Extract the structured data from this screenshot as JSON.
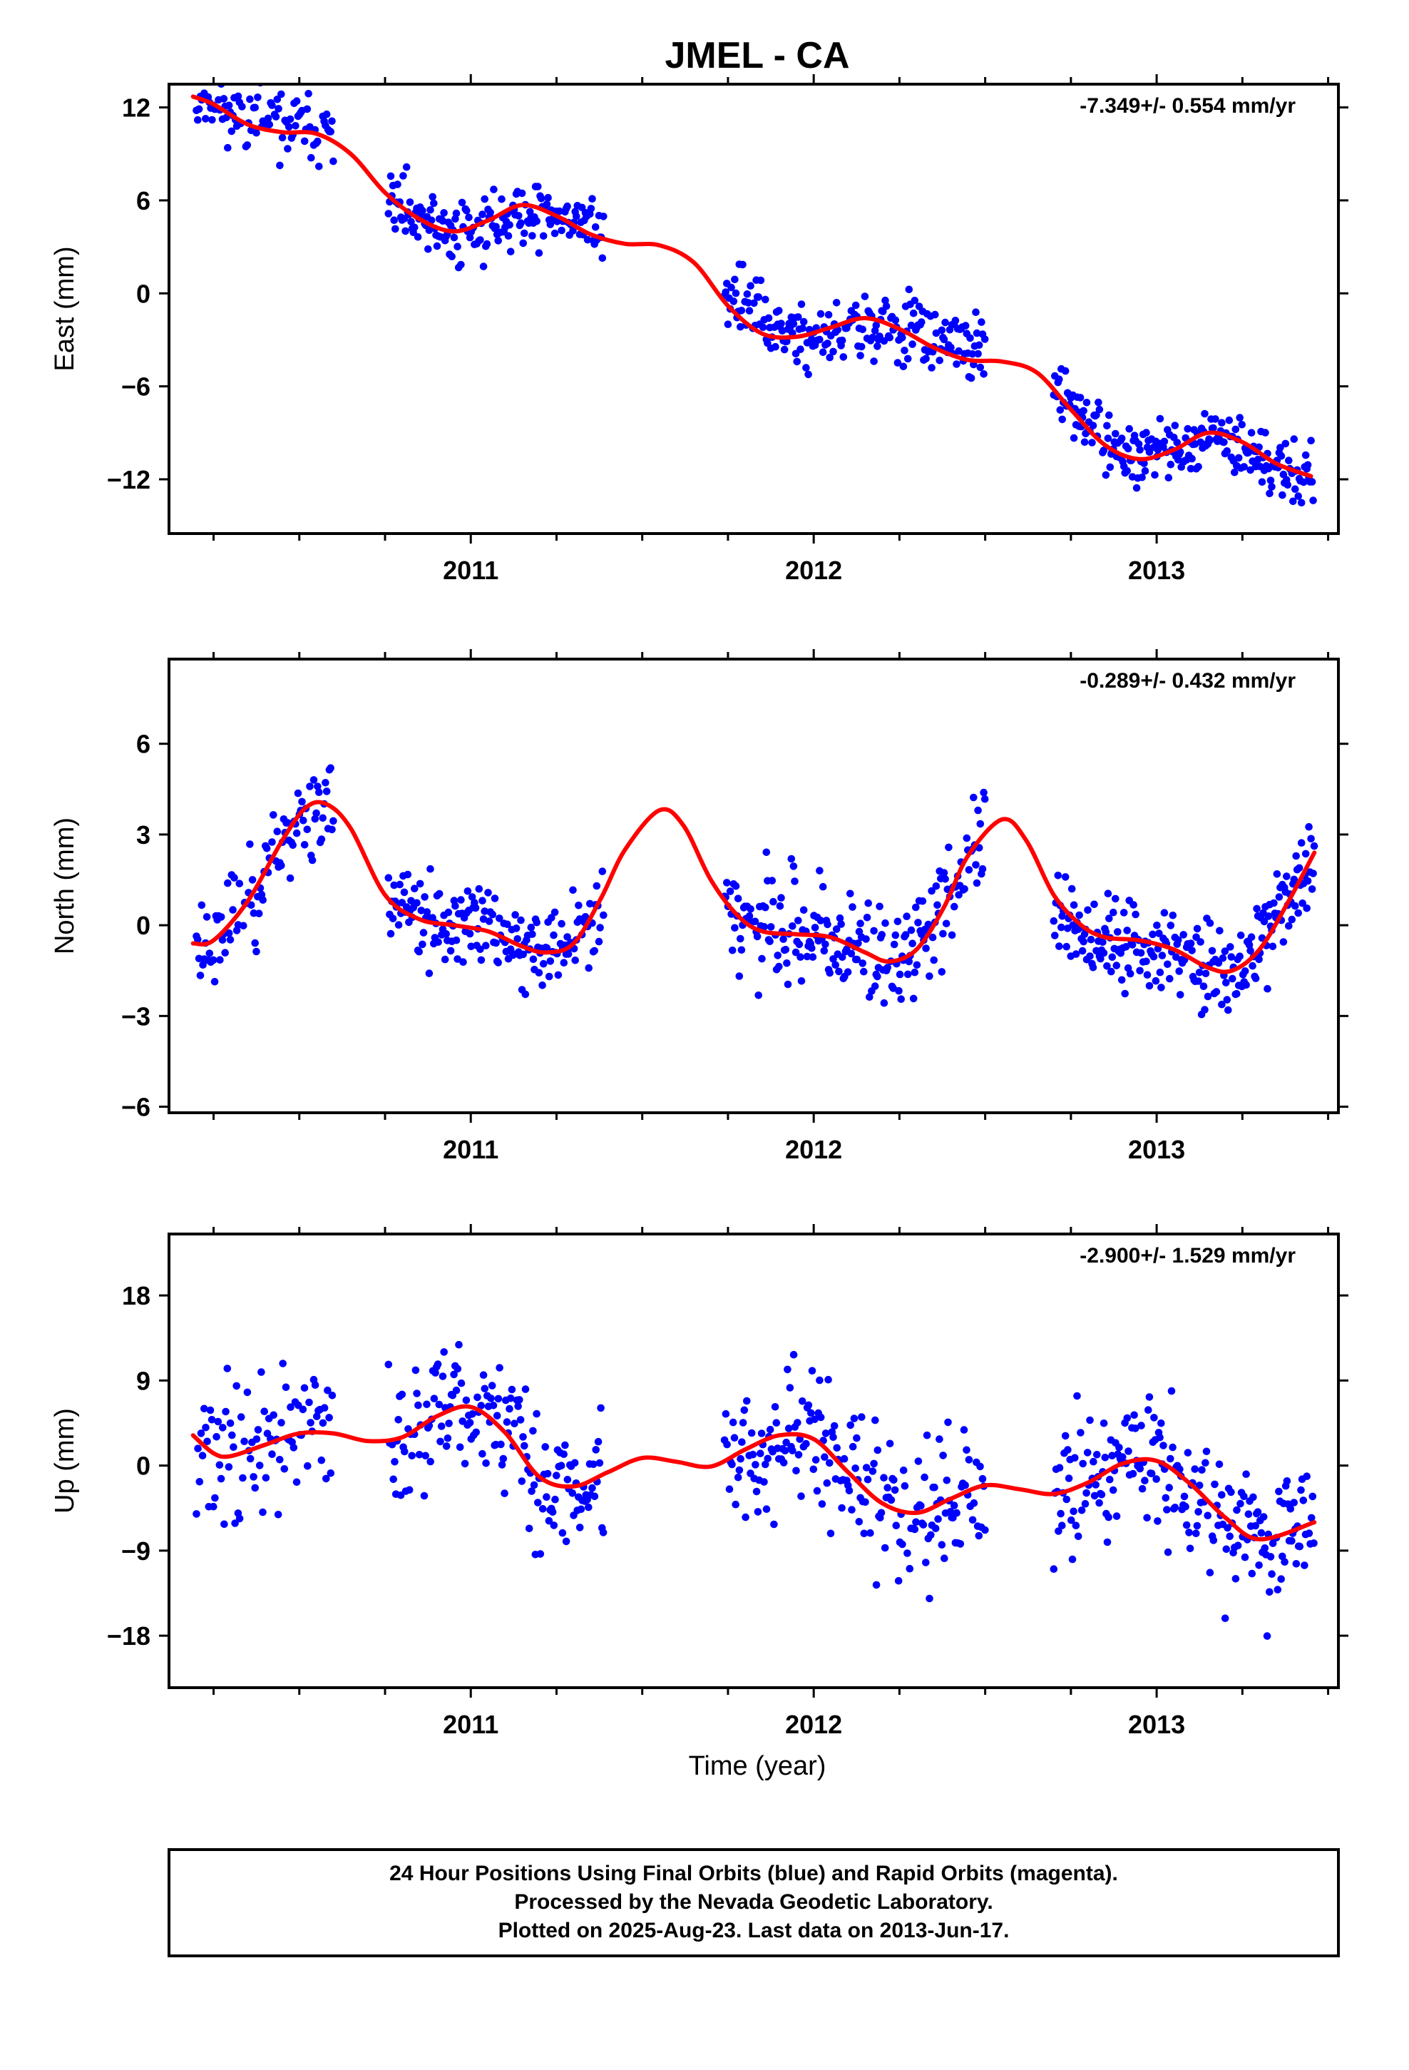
{
  "title": "JMEL - CA",
  "xlabel": "Time (year)",
  "footer": {
    "line1": "24 Hour Positions Using Final Orbits (blue) and Rapid Orbits (magenta).",
    "line2": "Processed by the Nevada Geodetic Laboratory.",
    "line3": "Plotted on 2025-Aug-23. Last data on 2013-Jun-17."
  },
  "colors": {
    "data": "#0000ff",
    "fit": "#ff0000",
    "frame": "#000000"
  },
  "chart_data": [
    {
      "type": "scatter",
      "ylabel": "East (mm)",
      "rate": "-7.349+/- 0.554 mm/yr",
      "xlim": [
        2010.12,
        2013.53
      ],
      "ylim": [
        -15.5,
        13.5
      ],
      "yticks": [
        12,
        6,
        0,
        -6,
        -12
      ],
      "xticks": [
        2011,
        2012,
        2013
      ],
      "fit_x": [
        2010.19,
        2010.25,
        2010.35,
        2010.45,
        2010.55,
        2010.65,
        2010.75,
        2010.85,
        2010.95,
        2011.05,
        2011.15,
        2011.25,
        2011.35,
        2011.45,
        2011.55,
        2011.65,
        2011.75,
        2011.85,
        2011.95,
        2012.05,
        2012.15,
        2012.25,
        2012.35,
        2012.45,
        2012.55,
        2012.65,
        2012.75,
        2012.85,
        2012.95,
        2013.05,
        2013.15,
        2013.25,
        2013.35,
        2013.45
      ],
      "fit_y": [
        12.7,
        12.2,
        10.9,
        10.4,
        10.3,
        9.0,
        6.5,
        4.8,
        4.0,
        4.7,
        5.7,
        5.0,
        3.8,
        3.2,
        3.1,
        2.0,
        -0.8,
        -2.6,
        -2.8,
        -2.2,
        -1.6,
        -2.3,
        -3.5,
        -4.3,
        -4.4,
        -5.1,
        -7.5,
        -9.8,
        -10.7,
        -10.1,
        -9.0,
        -9.6,
        -11.0,
        -11.8
      ],
      "segments": [
        {
          "x0": 2010.2,
          "x1": 2010.6,
          "wave": [
            [
              0.4,
              1.25,
              0.0
            ],
            [
              0.2,
              0.42,
              2.0
            ]
          ],
          "noise": 1.6,
          "step": 0.0038
        },
        {
          "x0": 2010.76,
          "x1": 2011.39,
          "wave": [
            [
              0.4,
              1.25,
              0.0
            ],
            [
              0.2,
              0.42,
              2.0
            ]
          ],
          "noise": 1.45,
          "step": 0.0033
        },
        {
          "x0": 2011.74,
          "x1": 2012.5,
          "wave": [
            [
              0.9,
              0.6,
              1.5
            ],
            [
              0.0,
              1.0,
              0.0
            ]
          ],
          "noise": 1.5,
          "step": 0.0033
        },
        {
          "x0": 2012.7,
          "x1": 2013.46,
          "wave": [
            [
              0.3,
              1.25,
              1.0
            ],
            [
              0.0,
              1.0,
              0.0
            ]
          ],
          "noise": 1.4,
          "step": 0.0031
        }
      ],
      "seed": 11
    },
    {
      "type": "scatter",
      "ylabel": "North (mm)",
      "rate": "-0.289+/- 0.432 mm/yr",
      "xlim": [
        2010.12,
        2013.53
      ],
      "ylim": [
        -6.2,
        8.8
      ],
      "yticks": [
        6,
        3,
        0,
        -3,
        -6
      ],
      "xticks": [
        2011,
        2012,
        2013
      ],
      "fit_x": [
        2010.19,
        2010.25,
        2010.35,
        2010.45,
        2010.52,
        2010.58,
        2010.65,
        2010.75,
        2010.85,
        2010.95,
        2011.05,
        2011.15,
        2011.22,
        2011.3,
        2011.38,
        2011.45,
        2011.55,
        2011.62,
        2011.7,
        2011.78,
        2011.85,
        2011.95,
        2012.05,
        2012.15,
        2012.22,
        2012.3,
        2012.38,
        2012.45,
        2012.55,
        2012.62,
        2012.7,
        2012.78,
        2012.85,
        2012.95,
        2013.05,
        2013.15,
        2013.22,
        2013.3,
        2013.38,
        2013.46
      ],
      "fit_y": [
        -0.6,
        -0.5,
        0.8,
        2.8,
        3.9,
        4.0,
        3.2,
        1.0,
        0.2,
        0.0,
        -0.2,
        -0.7,
        -0.9,
        -0.6,
        0.9,
        2.5,
        3.8,
        3.3,
        1.5,
        0.3,
        -0.2,
        -0.3,
        -0.4,
        -0.9,
        -1.2,
        -0.8,
        0.6,
        2.3,
        3.5,
        2.8,
        1.0,
        0.0,
        -0.4,
        -0.5,
        -0.8,
        -1.4,
        -1.5,
        -0.8,
        0.7,
        2.4
      ],
      "segments": [
        {
          "x0": 2010.2,
          "x1": 2010.6,
          "wave": [
            [
              0.0,
              1.0,
              0.0
            ],
            [
              0.0,
              1.0,
              0.0
            ]
          ],
          "noise": 1.1,
          "step": 0.0038
        },
        {
          "x0": 2010.76,
          "x1": 2011.39,
          "wave": [
            [
              0.0,
              1.0,
              0.0
            ],
            [
              0.0,
              1.0,
              0.0
            ]
          ],
          "noise": 0.95,
          "step": 0.0033
        },
        {
          "x0": 2011.74,
          "x1": 2012.5,
          "wave": [
            [
              0.0,
              1.0,
              0.0
            ],
            [
              0.0,
              1.0,
              0.0
            ]
          ],
          "noise": 1.25,
          "step": 0.0033
        },
        {
          "x0": 2012.7,
          "x1": 2013.46,
          "wave": [
            [
              0.0,
              1.0,
              0.0
            ],
            [
              0.0,
              1.0,
              0.0
            ]
          ],
          "noise": 1.0,
          "step": 0.0031
        }
      ],
      "seed": 23
    },
    {
      "type": "scatter",
      "ylabel": "Up (mm)",
      "rate": "-2.900+/- 1.529 mm/yr",
      "xlim": [
        2010.12,
        2013.53
      ],
      "ylim": [
        -23.5,
        24.5
      ],
      "yticks": [
        18,
        9,
        0,
        -9,
        -18
      ],
      "xticks": [
        2011,
        2012,
        2013
      ],
      "fit_x": [
        2010.19,
        2010.25,
        2010.3,
        2010.4,
        2010.5,
        2010.6,
        2010.7,
        2010.8,
        2010.9,
        2011.0,
        2011.1,
        2011.2,
        2011.3,
        2011.4,
        2011.5,
        2011.6,
        2011.7,
        2011.8,
        2011.9,
        2012.0,
        2012.1,
        2012.2,
        2012.3,
        2012.4,
        2012.5,
        2012.6,
        2012.7,
        2012.8,
        2012.9,
        2013.0,
        2013.1,
        2013.2,
        2013.3,
        2013.46
      ],
      "fit_y": [
        3.2,
        1.3,
        1.0,
        2.2,
        3.4,
        3.4,
        2.6,
        3.0,
        5.2,
        6.2,
        3.5,
        -1.2,
        -2.2,
        -0.7,
        0.8,
        0.4,
        -0.1,
        1.7,
        3.2,
        2.8,
        -0.7,
        -4.0,
        -5.0,
        -3.5,
        -2.1,
        -2.5,
        -3.0,
        -1.8,
        0.2,
        0.5,
        -2.0,
        -5.5,
        -7.8,
        -6.0
      ],
      "segments": [
        {
          "x0": 2010.2,
          "x1": 2010.6,
          "wave": [
            [
              0.0,
              1.0,
              0.0
            ],
            [
              0.0,
              1.0,
              0.0
            ]
          ],
          "noise": 5.8,
          "step": 0.0045
        },
        {
          "x0": 2010.76,
          "x1": 2011.39,
          "wave": [
            [
              0.0,
              1.0,
              0.0
            ],
            [
              0.0,
              1.0,
              0.0
            ]
          ],
          "noise": 5.0,
          "step": 0.0036
        },
        {
          "x0": 2011.74,
          "x1": 2012.5,
          "wave": [
            [
              0.0,
              1.0,
              0.0
            ],
            [
              0.0,
              1.0,
              0.0
            ]
          ],
          "noise": 5.6,
          "step": 0.0036
        },
        {
          "x0": 2012.7,
          "x1": 2013.46,
          "wave": [
            [
              0.0,
              1.0,
              0.0
            ],
            [
              0.0,
              1.0,
              0.0
            ]
          ],
          "noise": 5.0,
          "step": 0.0034
        }
      ],
      "seed": 37
    }
  ]
}
